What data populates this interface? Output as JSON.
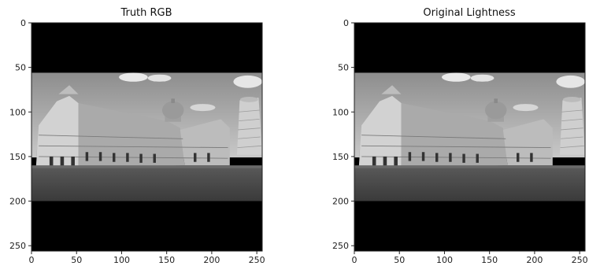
{
  "figure": {
    "panels": [
      {
        "title": "Truth RGB",
        "image_alt": "Grayscale photo of Pisa Cathedral with Leaning Tower, black letterbox bars",
        "x_ticks": [
          "0",
          "50",
          "100",
          "150",
          "200",
          "250"
        ],
        "y_ticks": [
          "0",
          "50",
          "100",
          "150",
          "200",
          "250"
        ]
      },
      {
        "title": "Original Lightness",
        "image_alt": "Grayscale photo of Pisa Cathedral with Leaning Tower, black letterbox bars",
        "x_ticks": [
          "0",
          "50",
          "100",
          "150",
          "200",
          "250"
        ],
        "y_ticks": [
          "0",
          "50",
          "100",
          "150",
          "200",
          "250"
        ]
      }
    ]
  }
}
